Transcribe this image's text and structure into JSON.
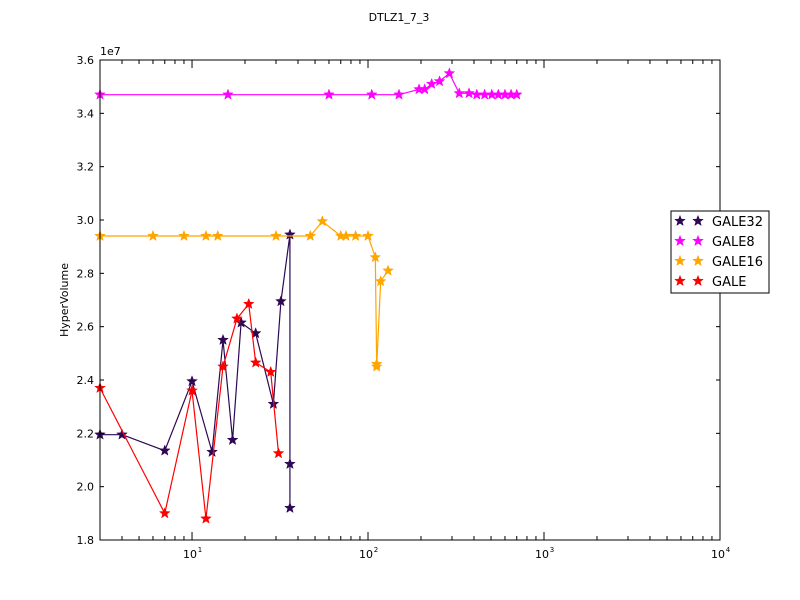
{
  "chart_data": {
    "type": "line",
    "title": "DTLZ1_7_3",
    "xlabel": "",
    "ylabel": "HyperVolume",
    "x_scale": "log",
    "xlim": [
      3,
      10000
    ],
    "ylim": [
      18000000,
      36000000
    ],
    "y_offset_label": "1e7",
    "x_ticks": [
      {
        "value": 10,
        "label": "10"
      },
      {
        "value": 100,
        "label": "10"
      },
      {
        "value": 1000,
        "label": "10"
      },
      {
        "value": 10000,
        "label": "10"
      }
    ],
    "x_tick_exponents": [
      "1",
      "2",
      "3",
      "4"
    ],
    "y_ticks": [
      {
        "value": 18000000,
        "label": "1.8"
      },
      {
        "value": 20000000,
        "label": "2.0"
      },
      {
        "value": 22000000,
        "label": "2.2"
      },
      {
        "value": 24000000,
        "label": "2.4"
      },
      {
        "value": 26000000,
        "label": "2.6"
      },
      {
        "value": 28000000,
        "label": "2.8"
      },
      {
        "value": 30000000,
        "label": "3.0"
      },
      {
        "value": 32000000,
        "label": "3.2"
      },
      {
        "value": 34000000,
        "label": "3.4"
      },
      {
        "value": 36000000,
        "label": "3.6"
      }
    ],
    "grid": false,
    "legend_position": "right",
    "marker": "star",
    "series": [
      {
        "name": "GALE32",
        "color": "#2e0854",
        "x": [
          3,
          4,
          7,
          10,
          13,
          15,
          17,
          19,
          23,
          29,
          32,
          36,
          36,
          36
        ],
        "y": [
          21950000,
          21950000,
          21350000,
          23950000,
          21300000,
          25500000,
          21750000,
          26150000,
          25750000,
          23100000,
          26950000,
          29450000,
          19200000,
          20850000
        ]
      },
      {
        "name": "GALE8",
        "color": "#ff00ff",
        "x": [
          3,
          16,
          60,
          105,
          150,
          195,
          210,
          230,
          255,
          290,
          330,
          375,
          415,
          460,
          505,
          550,
          600,
          650,
          700
        ],
        "y": [
          34700000,
          34700000,
          34700000,
          34700000,
          34700000,
          34900000,
          34900000,
          35100000,
          35200000,
          35500000,
          34750000,
          34750000,
          34700000,
          34700000,
          34700000,
          34700000,
          34700000,
          34700000,
          34700000
        ]
      },
      {
        "name": "GALE16",
        "color": "#ffa500",
        "x": [
          3,
          6,
          9,
          12,
          14,
          30,
          47,
          55,
          70,
          75,
          85,
          100,
          110,
          112,
          112,
          118,
          130
        ],
        "y": [
          29400000,
          29400000,
          29400000,
          29400000,
          29400000,
          29400000,
          29400000,
          29950000,
          29400000,
          29400000,
          29400000,
          29400000,
          28600000,
          24600000,
          24500000,
          27700000,
          28100000
        ]
      },
      {
        "name": "GALE",
        "color": "#ff0000",
        "x": [
          3,
          7,
          10,
          12,
          15,
          18,
          21,
          23,
          28,
          31
        ],
        "y": [
          23700000,
          19000000,
          23600000,
          18800000,
          24500000,
          26300000,
          26850000,
          24650000,
          24300000,
          21250000
        ]
      }
    ]
  }
}
